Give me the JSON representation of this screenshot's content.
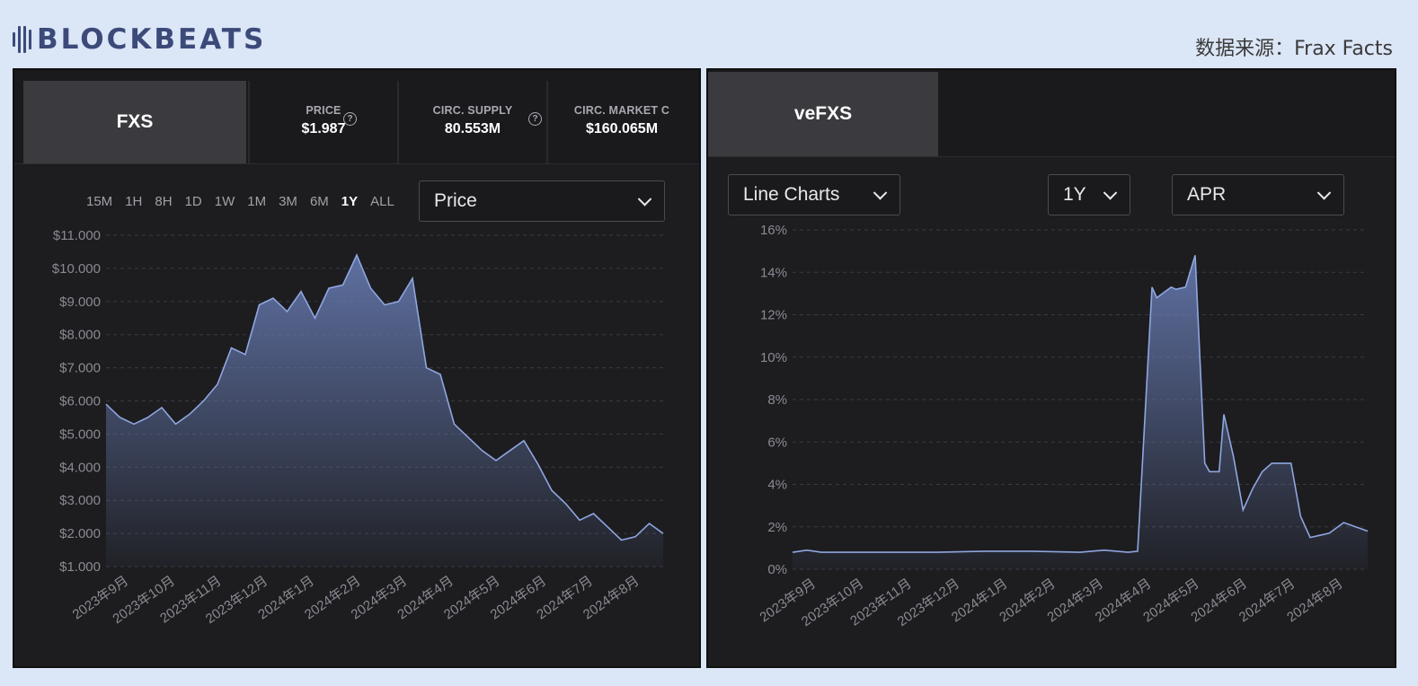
{
  "header": {
    "brand": "BLOCKBEATS",
    "source": "数据来源：Frax Facts"
  },
  "left_panel": {
    "token_tab": "FXS",
    "stats": [
      {
        "label": "PRICE",
        "value": "$1.987"
      },
      {
        "label": "CIRC. SUPPLY",
        "value": "80.553M"
      },
      {
        "label": "CIRC. MARKET C",
        "value": "$160.065M"
      }
    ],
    "ranges": [
      "15M",
      "1H",
      "8H",
      "1D",
      "1W",
      "1M",
      "3M",
      "6M",
      "1Y",
      "ALL"
    ],
    "active_range": "1Y",
    "metric_select": "Price"
  },
  "right_panel": {
    "token_tab": "veFXS",
    "chart_type_select": "Line Charts",
    "range_select": "1Y",
    "metric_select": "APR"
  },
  "colors": {
    "line": "#8fa6e0",
    "fill_top": "#6a7fb8",
    "grid": "#3a3a40",
    "panel_bg": "#1d1d20"
  },
  "chart_data": [
    {
      "type": "area",
      "yticks": [
        "$11.000",
        "$10.000",
        "$9.000",
        "$8.000",
        "$7.000",
        "$6.000",
        "$5.000",
        "$4.000",
        "$3.000",
        "$2.000",
        "$1.000"
      ],
      "xticks": [
        "2023年9月",
        "2023年10月",
        "2023年11月",
        "2023年12月",
        "2024年1月",
        "2024年2月",
        "2024年3月",
        "2024年4月",
        "2024年5月",
        "2024年6月",
        "2024年7月",
        "2024年8月"
      ],
      "ylim": [
        1,
        11
      ],
      "xlim": [
        0,
        12
      ],
      "x": [
        0,
        0.3,
        0.6,
        0.9,
        1.2,
        1.5,
        1.8,
        2.1,
        2.4,
        2.7,
        3.0,
        3.3,
        3.6,
        3.9,
        4.2,
        4.5,
        4.8,
        5.1,
        5.4,
        5.7,
        6.0,
        6.3,
        6.6,
        6.9,
        7.2,
        7.5,
        7.8,
        8.1,
        8.4,
        8.7,
        9.0,
        9.3,
        9.6,
        9.9,
        10.2,
        10.5,
        10.8,
        11.1,
        11.4,
        11.7,
        12.0
      ],
      "y": [
        5.9,
        5.5,
        5.3,
        5.5,
        5.8,
        5.3,
        5.6,
        6.0,
        6.5,
        7.6,
        7.4,
        8.9,
        9.1,
        8.7,
        9.3,
        8.5,
        9.4,
        9.5,
        10.4,
        9.4,
        8.9,
        9.0,
        9.7,
        7.0,
        6.8,
        5.3,
        4.9,
        4.5,
        4.2,
        4.5,
        4.8,
        4.1,
        3.3,
        2.9,
        2.4,
        2.6,
        2.2,
        1.8,
        1.9,
        2.3,
        2.0
      ]
    },
    {
      "type": "area",
      "yticks": [
        "16%",
        "14%",
        "12%",
        "10%",
        "8%",
        "6%",
        "4%",
        "2%",
        "0%"
      ],
      "xticks": [
        "2023年9月",
        "2023年10月",
        "2023年11月",
        "2023年12月",
        "2024年1月",
        "2024年2月",
        "2024年3月",
        "2024年4月",
        "2024年5月",
        "2024年6月",
        "2024年7月",
        "2024年8月"
      ],
      "ylim": [
        0,
        16
      ],
      "xlim": [
        0,
        12
      ],
      "x": [
        0,
        0.3,
        0.6,
        1.0,
        2.0,
        3.0,
        4.0,
        5.0,
        6.0,
        6.5,
        7.0,
        7.2,
        7.5,
        7.6,
        7.9,
        8.0,
        8.2,
        8.4,
        8.6,
        8.7,
        8.9,
        9.0,
        9.2,
        9.4,
        9.6,
        9.8,
        10.0,
        10.2,
        10.4,
        10.6,
        10.8,
        11.0,
        11.2,
        11.5,
        12.0
      ],
      "y": [
        0.8,
        0.9,
        0.8,
        0.8,
        0.8,
        0.8,
        0.85,
        0.85,
        0.8,
        0.9,
        0.8,
        0.85,
        13.3,
        12.8,
        13.3,
        13.2,
        13.3,
        14.8,
        5.0,
        4.6,
        4.6,
        7.3,
        5.3,
        2.8,
        3.8,
        4.6,
        5.0,
        5.0,
        5.0,
        2.5,
        1.5,
        1.6,
        1.7,
        2.2,
        1.8
      ]
    }
  ]
}
